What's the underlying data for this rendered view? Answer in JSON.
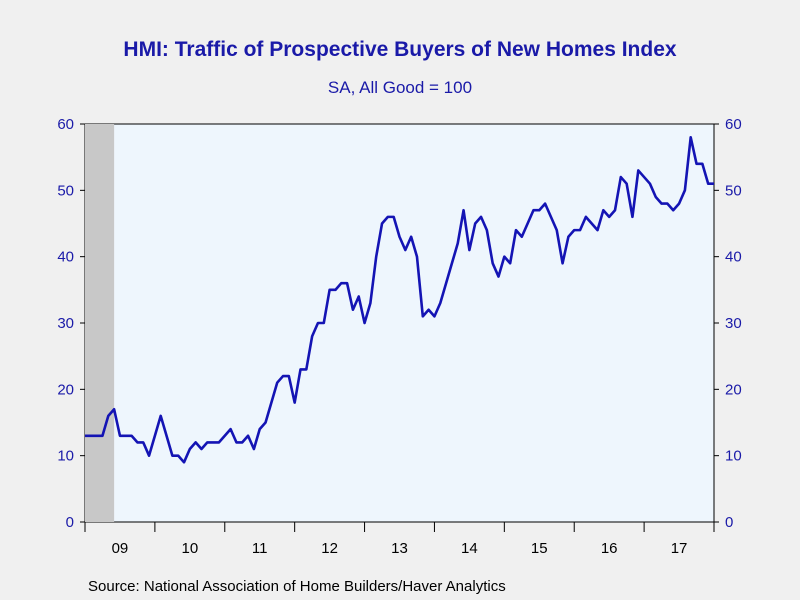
{
  "chart_data": {
    "type": "line",
    "title": "HMI: Traffic of Prospective Buyers of New Homes Index",
    "subtitle": "SA, All Good = 100",
    "source": "Source:  National Association of Home Builders/Haver Analytics",
    "ylim": [
      0,
      60
    ],
    "yticks": [
      0,
      10,
      20,
      30,
      40,
      50,
      60
    ],
    "x_start": "2009-01",
    "x_end": "2018-01",
    "xtick_labels": [
      "09",
      "10",
      "11",
      "12",
      "13",
      "14",
      "15",
      "16",
      "17"
    ],
    "grid": false,
    "shaded_periods": [
      [
        "2009-01",
        "2009-06"
      ]
    ],
    "colors": {
      "line": "#1414b4",
      "plot_bg": "#eef6fd",
      "text": "#1a1aa8",
      "recession": "#c8c8c8"
    },
    "series": [
      {
        "start": "2009-01",
        "frequency": "monthly",
        "values": [
          13,
          13,
          13,
          13,
          16,
          17,
          13,
          13,
          13,
          12,
          12,
          10,
          13,
          16,
          13,
          10,
          10,
          9,
          11,
          12,
          11,
          12,
          12,
          12,
          13,
          14,
          12,
          12,
          13,
          11,
          14,
          15,
          18,
          21,
          22,
          22,
          18,
          23,
          23,
          28,
          30,
          30,
          35,
          35,
          36,
          36,
          32,
          34,
          30,
          33,
          40,
          45,
          46,
          46,
          43,
          41,
          43,
          40,
          31,
          32,
          31,
          33,
          36,
          39,
          42,
          47,
          41,
          45,
          46,
          44,
          39,
          37,
          40,
          39,
          44,
          43,
          45,
          47,
          47,
          48,
          46,
          44,
          39,
          43,
          44,
          44,
          46,
          45,
          44,
          47,
          46,
          47,
          52,
          51,
          46,
          53,
          52,
          51,
          49,
          48,
          48,
          47,
          48,
          50,
          58,
          54,
          54,
          51,
          51
        ]
      }
    ]
  }
}
